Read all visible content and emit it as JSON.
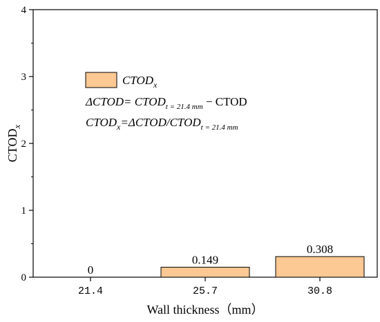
{
  "chart_data": {
    "type": "bar",
    "categories": [
      "21.4",
      "25.7",
      "30.8"
    ],
    "values": [
      0,
      0.149,
      0.308
    ],
    "data_labels": [
      "0",
      "0.149",
      "0.308"
    ],
    "xlabel": "Wall thickness（mm）",
    "ylabel": {
      "main": "CTOD",
      "sub": "x"
    },
    "ylim": [
      0,
      4
    ],
    "yticks": [
      0,
      1,
      2,
      3,
      4
    ],
    "bar_color": "#fcc893",
    "bar_edge_color": "#000000",
    "grid": false,
    "legend": {
      "placement": "top-left",
      "entry": {
        "main": "CTOD",
        "sub": "x"
      },
      "formula1": {
        "lhs": "ΔCTOD= CTOD",
        "sub": "t = 21.4 mm",
        "rhs": " − CTOD"
      },
      "formula2": {
        "main": "CTOD",
        "sub1": "x",
        "mid": "=ΔCTOD/CTOD",
        "sub2": "t = 21.4 mm"
      }
    }
  }
}
